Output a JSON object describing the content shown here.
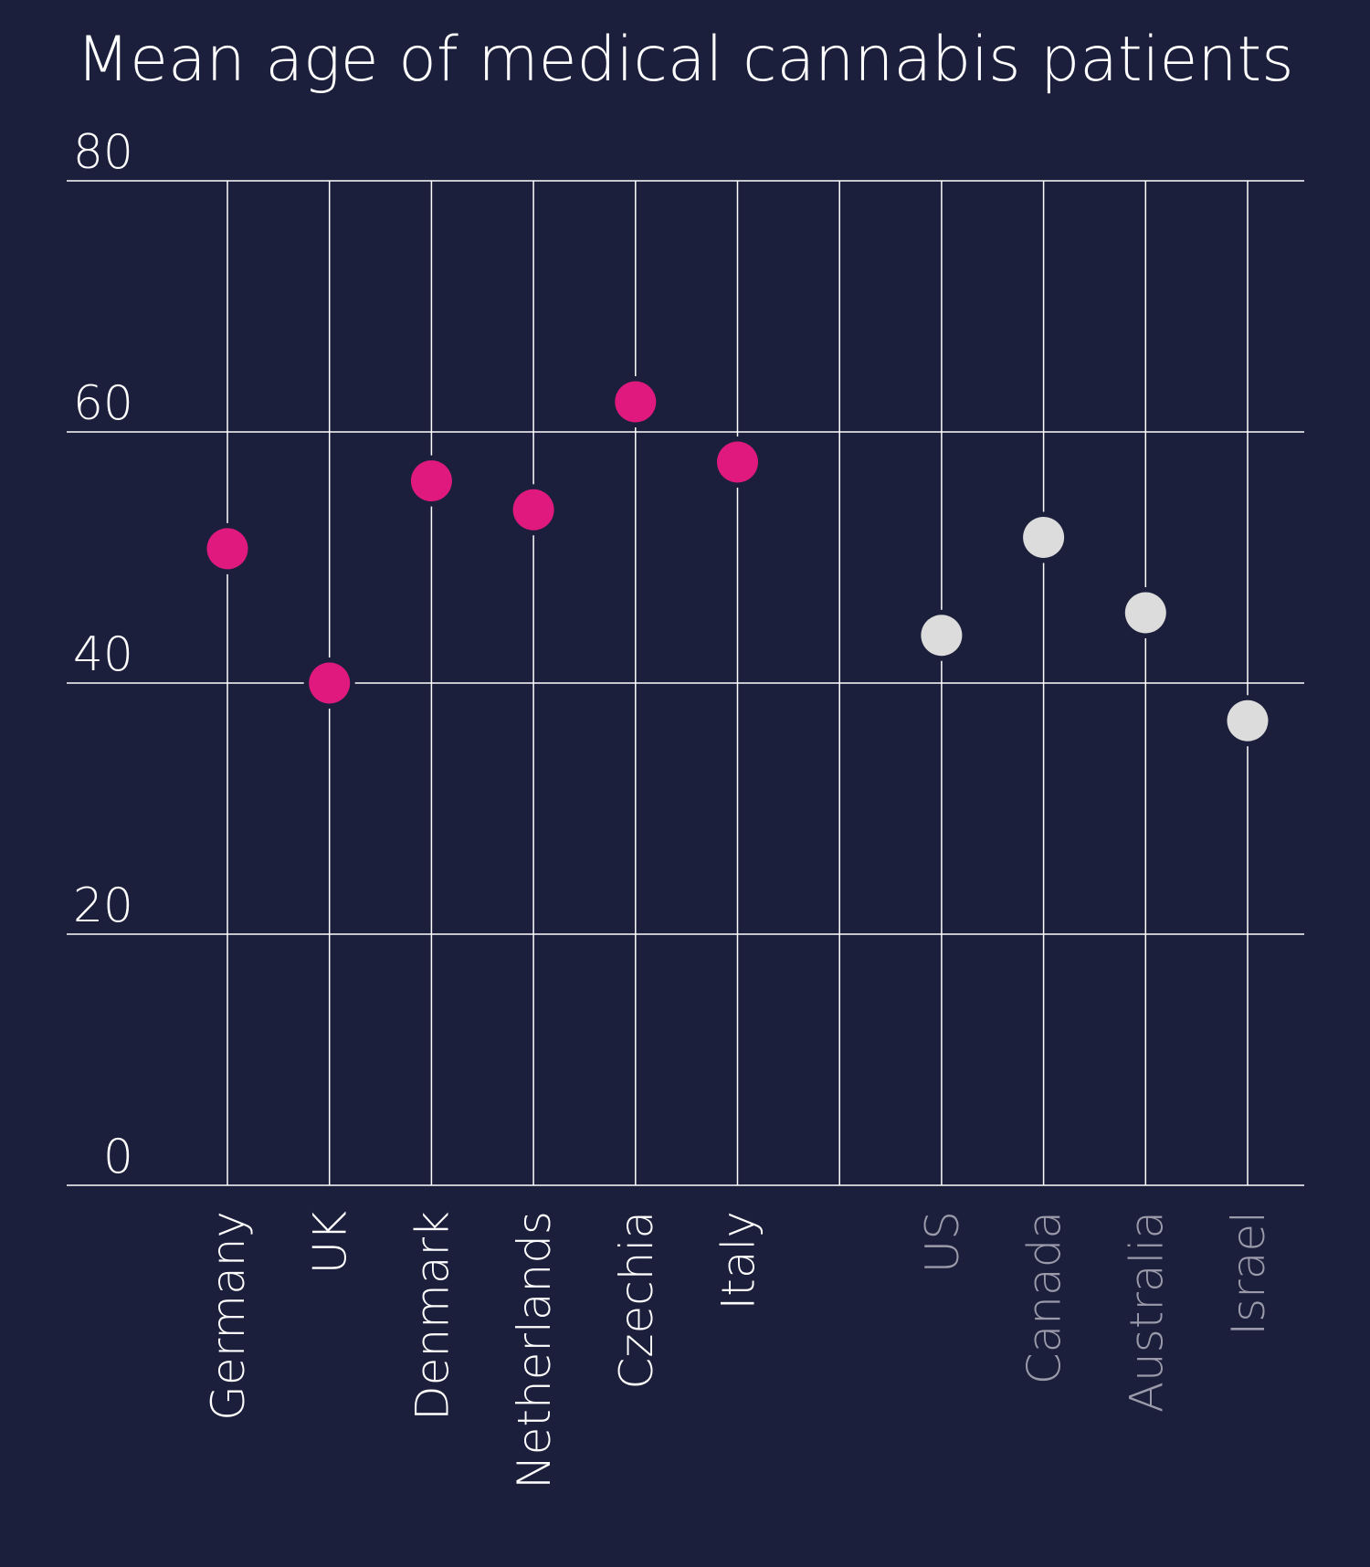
{
  "chart_data": {
    "type": "scatter",
    "title": "Mean age of medical cannabis patients",
    "xlabel": "",
    "ylabel": "",
    "ylim": [
      0,
      80
    ],
    "yticks": [
      "0",
      "20",
      "40",
      "60",
      "80"
    ],
    "grid": true,
    "categories": [
      "Germany",
      "UK",
      "Denmark",
      "Netherlands",
      "Czechia",
      "Italy",
      "",
      "US",
      "Canada",
      "Australia",
      "Israel"
    ],
    "series": [
      {
        "color": "#e0197f",
        "points": [
          {
            "x": "Germany",
            "y": 50.7
          },
          {
            "x": "UK",
            "y": 40.0
          },
          {
            "x": "Denmark",
            "y": 56.1
          },
          {
            "x": "Netherlands",
            "y": 53.8
          },
          {
            "x": "Czechia",
            "y": 62.4
          },
          {
            "x": "Italy",
            "y": 57.6
          }
        ]
      },
      {
        "color": "#dcdcdc",
        "points": [
          {
            "x": "US",
            "y": 43.8
          },
          {
            "x": "Canada",
            "y": 51.6
          },
          {
            "x": "Australia",
            "y": 45.6
          },
          {
            "x": "Israel",
            "y": 37.0
          }
        ]
      }
    ]
  },
  "colors": {
    "background": "#1b1f3b",
    "grid": "#ffffff",
    "text": "#ffffff",
    "muted_label": "#9a9aaa"
  }
}
